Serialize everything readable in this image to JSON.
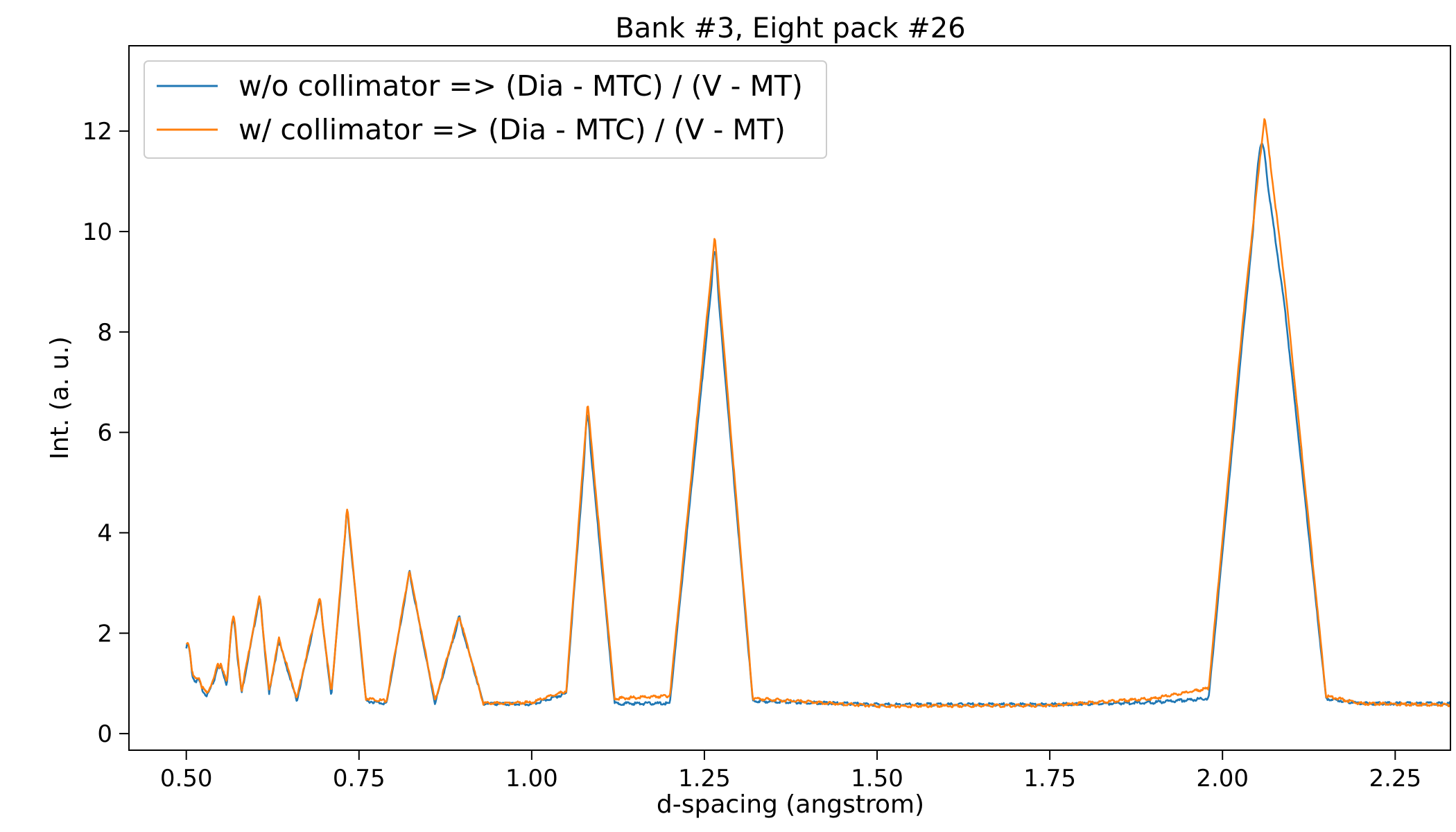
{
  "chart_data": {
    "type": "line",
    "title": "Bank #3, Eight pack #26",
    "xlabel": "d-spacing (angstrom)",
    "ylabel": "Int. (a. u.)",
    "xlim": [
      0.417,
      2.33
    ],
    "ylim": [
      -0.33,
      13.7
    ],
    "xticks": [
      0.5,
      0.75,
      1.0,
      1.25,
      1.5,
      1.75,
      2.0,
      2.25
    ],
    "xtick_labels": [
      "0.50",
      "0.75",
      "1.00",
      "1.25",
      "1.50",
      "1.75",
      "2.00",
      "2.25"
    ],
    "yticks": [
      0,
      2,
      4,
      6,
      8,
      10,
      12
    ],
    "ytick_labels": [
      "0",
      "2",
      "4",
      "6",
      "8",
      "10",
      "12"
    ],
    "grid": false,
    "legend_position": "top-left",
    "series": [
      {
        "name": "w/o collimator => (Dia - MTC) / (V - MT)",
        "color": "#1f77b4",
        "peaks": [
          [
            0.502,
            1.15
          ],
          [
            0.517,
            0.45
          ],
          [
            0.546,
            0.7
          ],
          [
            0.568,
            1.65
          ],
          [
            0.606,
            2.05
          ],
          [
            0.634,
            1.2
          ],
          [
            0.693,
            2.05
          ],
          [
            0.733,
            3.8
          ],
          [
            0.823,
            2.6
          ],
          [
            0.895,
            1.7
          ],
          [
            1.081,
            5.7
          ],
          [
            1.265,
            9.0
          ],
          [
            2.057,
            11.1
          ]
        ],
        "points": [
          [
            0.5,
            1.6
          ],
          [
            0.51,
            1.1
          ],
          [
            0.53,
            0.75
          ],
          [
            0.55,
            1.35
          ],
          [
            0.56,
            0.9
          ],
          [
            0.568,
            2.3
          ],
          [
            0.58,
            0.8
          ],
          [
            0.606,
            2.7
          ],
          [
            0.62,
            0.8
          ],
          [
            0.634,
            1.85
          ],
          [
            0.66,
            0.65
          ],
          [
            0.693,
            2.65
          ],
          [
            0.71,
            0.75
          ],
          [
            0.733,
            4.45
          ],
          [
            0.76,
            0.65
          ],
          [
            0.79,
            0.6
          ],
          [
            0.823,
            3.2
          ],
          [
            0.86,
            0.6
          ],
          [
            0.895,
            2.3
          ],
          [
            0.93,
            0.6
          ],
          [
            1.0,
            0.58
          ],
          [
            1.05,
            0.8
          ],
          [
            1.081,
            6.3
          ],
          [
            1.12,
            0.6
          ],
          [
            1.2,
            0.6
          ],
          [
            1.265,
            9.55
          ],
          [
            1.32,
            0.65
          ],
          [
            1.5,
            0.58
          ],
          [
            1.75,
            0.58
          ],
          [
            1.9,
            0.62
          ],
          [
            1.98,
            0.7
          ],
          [
            2.03,
            8.0
          ],
          [
            2.057,
            11.8
          ],
          [
            2.09,
            8.5
          ],
          [
            2.15,
            0.7
          ],
          [
            2.2,
            0.6
          ],
          [
            2.33,
            0.6
          ]
        ]
      },
      {
        "name": "w/ collimator => (Dia - MTC) / (V - MT)",
        "color": "#ff7f0e",
        "peaks": [
          [
            0.502,
            1.2
          ],
          [
            0.517,
            0.5
          ],
          [
            0.546,
            0.75
          ],
          [
            0.568,
            1.7
          ],
          [
            0.606,
            2.05
          ],
          [
            0.634,
            1.2
          ],
          [
            0.693,
            2.05
          ],
          [
            0.733,
            3.85
          ],
          [
            0.823,
            2.6
          ],
          [
            0.895,
            1.7
          ],
          [
            1.081,
            5.75
          ],
          [
            1.265,
            9.1
          ],
          [
            2.061,
            11.3
          ]
        ],
        "points": [
          [
            0.5,
            1.8
          ],
          [
            0.51,
            1.15
          ],
          [
            0.53,
            0.8
          ],
          [
            0.55,
            1.4
          ],
          [
            0.56,
            0.95
          ],
          [
            0.568,
            2.35
          ],
          [
            0.58,
            0.85
          ],
          [
            0.606,
            2.75
          ],
          [
            0.62,
            0.85
          ],
          [
            0.634,
            1.9
          ],
          [
            0.66,
            0.7
          ],
          [
            0.693,
            2.7
          ],
          [
            0.71,
            0.8
          ],
          [
            0.733,
            4.5
          ],
          [
            0.76,
            0.7
          ],
          [
            0.79,
            0.65
          ],
          [
            0.823,
            3.25
          ],
          [
            0.86,
            0.65
          ],
          [
            0.895,
            2.35
          ],
          [
            0.93,
            0.6
          ],
          [
            1.0,
            0.62
          ],
          [
            1.05,
            0.85
          ],
          [
            1.081,
            6.6
          ],
          [
            1.12,
            0.7
          ],
          [
            1.2,
            0.75
          ],
          [
            1.265,
            9.9
          ],
          [
            1.32,
            0.7
          ],
          [
            1.5,
            0.55
          ],
          [
            1.75,
            0.56
          ],
          [
            1.9,
            0.7
          ],
          [
            1.98,
            0.9
          ],
          [
            2.03,
            8.3
          ],
          [
            2.061,
            12.3
          ],
          [
            2.09,
            9.0
          ],
          [
            2.15,
            0.75
          ],
          [
            2.2,
            0.6
          ],
          [
            2.33,
            0.57
          ]
        ]
      }
    ]
  }
}
